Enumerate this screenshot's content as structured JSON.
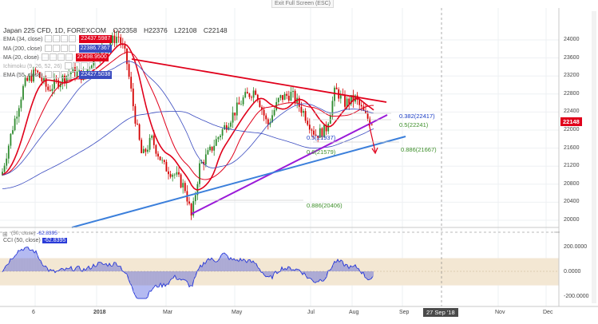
{
  "topbar": {
    "exit_label": "Exit Full Screen (ESC)"
  },
  "symbol": {
    "title": "Japan 225 CFD, 1D, FOREXCOM",
    "open": "O22358",
    "high": "H22376",
    "low": "L22108",
    "close": "C22148"
  },
  "indicators": [
    {
      "name": "EMA (34, close)",
      "value": "22437.5987",
      "color": "#e0001b"
    },
    {
      "name": "MA (200, close)",
      "value": "22386.7367",
      "color": "#3b4cc0"
    },
    {
      "name": "MA (20, close)",
      "value": "22498.9500",
      "color": "#e0001b"
    },
    {
      "name": "Ichimoku (9, 26, 52, 26)",
      "value": "",
      "color": "#888888"
    },
    {
      "name": "EMA (55, close)",
      "value": "22427.5038",
      "color": "#3b4cc0"
    }
  ],
  "price_axis": [
    "24000",
    "23600",
    "23200",
    "22800",
    "22400",
    "22000",
    "21600",
    "21200",
    "20800",
    "20400",
    "20000"
  ],
  "current_price": "22148",
  "cci_axis": [
    "200.0000",
    "0.0000",
    "-200.0000"
  ],
  "cci": {
    "label": "CCI (50, close)",
    "value": "-62.8395",
    "header": "(50, close)",
    "header_value": "-62.8395"
  },
  "time_axis": [
    "6",
    "2018",
    "Mar",
    "May",
    "Jul",
    "Aug",
    "Sep",
    "Nov",
    "Dec"
  ],
  "crosshair_date": "27 Sep '18",
  "fib_levels": [
    {
      "label": "0.382(22417)",
      "color": "#1a3cc4"
    },
    {
      "label": "0.5(22241)",
      "color": "#3d8f2a"
    },
    {
      "label": "0.886(21667)",
      "color": "#3d8f2a"
    },
    {
      "label": "0.5(21937)",
      "color": "#1a3cc4"
    },
    {
      "label": "0.6(21579)",
      "color": "#3d8f2a"
    },
    {
      "label": "0.886(20406)",
      "color": "#3d8f2a"
    }
  ],
  "colors": {
    "bull": "#2e8b2e",
    "bear": "#d40000",
    "trend_red": "#e0001b",
    "trend_purple": "#9a1ad8",
    "trend_blue": "#3b7fdb",
    "cci": "#2a3bd8",
    "cci_band": "#f3e7d3"
  }
}
